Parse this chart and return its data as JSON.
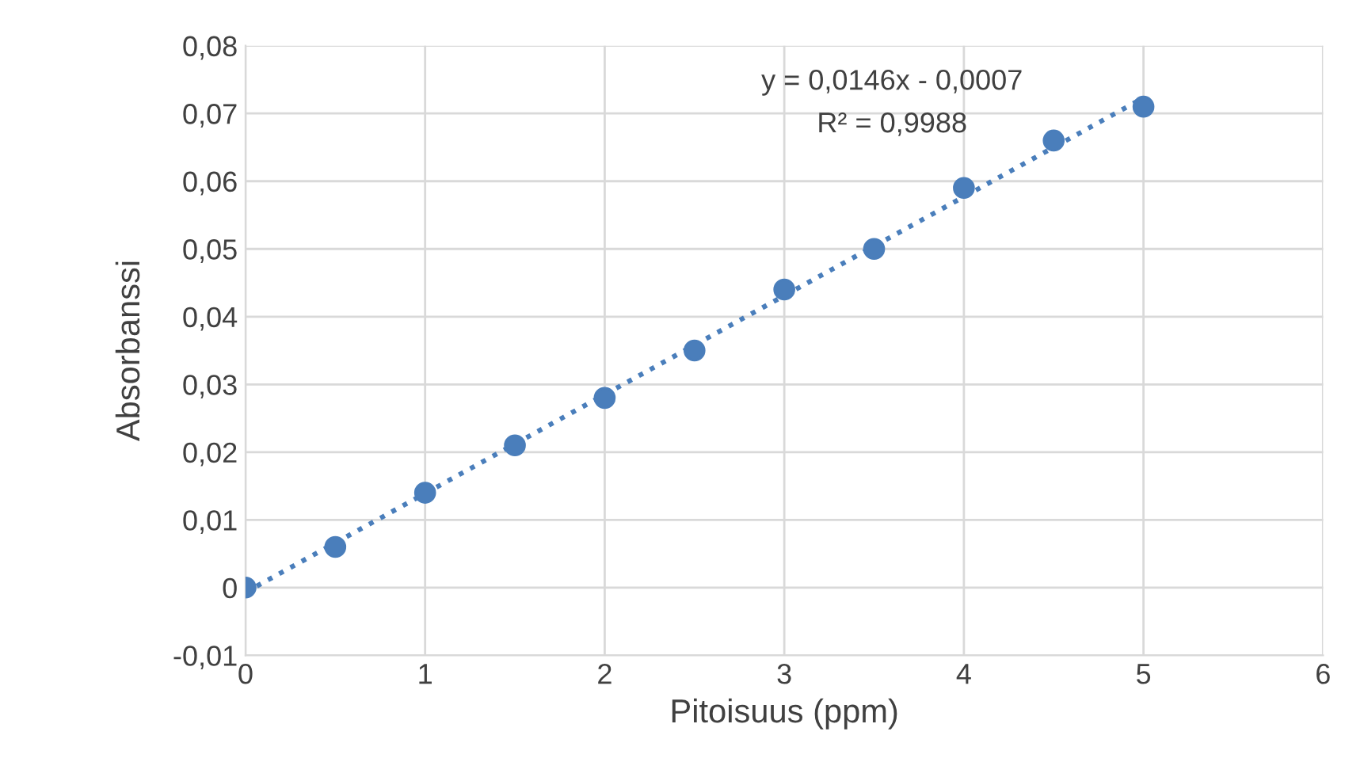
{
  "chart_data": {
    "type": "scatter",
    "xlabel": "Pitoisuus (ppm)",
    "ylabel": "Absorbanssi",
    "x": [
      0,
      0.5,
      1,
      1.5,
      2,
      2.5,
      3,
      3.5,
      4,
      4.5,
      5
    ],
    "series": [
      {
        "color": "#4a7ebb",
        "marker": "circle",
        "values": [
          0,
          0.006,
          0.014,
          0.021,
          0.028,
          0.035,
          0.044,
          0.05,
          0.059,
          0.066,
          0.071
        ]
      },
      {
        "type": "line",
        "color": "#4a7ebb",
        "marker": "none",
        "line_style": "dotted",
        "x": [
          0,
          5
        ],
        "values": [
          -0.0007,
          0.0723
        ]
      }
    ],
    "annotations": [
      "y = 0,0146x - 0,0007",
      "R² = 0,9988"
    ],
    "xlim": [
      0,
      6
    ],
    "xticks": [
      0,
      1,
      2,
      3,
      4,
      5,
      6
    ],
    "ylim": [
      -0.01,
      0.08
    ],
    "yticks": [
      {
        "value": -0.01,
        "label": "-0,01"
      },
      0,
      {
        "value": 0.01,
        "label": "0,01"
      },
      {
        "value": 0.02,
        "label": "0,02"
      },
      {
        "value": 0.03,
        "label": "0,03"
      },
      {
        "value": 0.04,
        "label": "0,04"
      },
      {
        "value": 0.05,
        "label": "0,05"
      },
      {
        "value": 0.06,
        "label": "0,06"
      },
      {
        "value": 0.07,
        "label": "0,07"
      },
      {
        "value": 0.08,
        "label": "0,08"
      }
    ],
    "grid": true
  }
}
